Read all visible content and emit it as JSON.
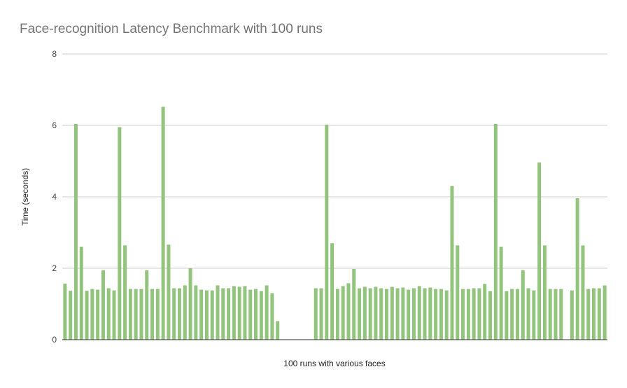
{
  "chart_data": {
    "type": "bar",
    "title": "Face-recognition Latency Benchmark with 100 runs",
    "xlabel": "100 runs with various faces",
    "ylabel": "Time (seconds)",
    "ylim": [
      0,
      8
    ],
    "yticks": [
      "0",
      "2",
      "4",
      "6",
      "8"
    ],
    "grid": true,
    "legend": "none",
    "bar_color": "#93c47d",
    "series": [
      {
        "values": [
          1.57,
          1.37,
          6.04,
          2.6,
          1.37,
          1.42,
          1.4,
          1.94,
          1.44,
          1.38,
          5.95,
          2.64,
          1.42,
          1.42,
          1.42,
          1.94,
          1.42,
          1.42,
          6.52,
          2.66,
          1.44,
          1.44,
          1.52,
          2.0,
          1.52,
          1.4,
          1.38,
          1.38,
          1.52,
          1.44,
          1.44,
          1.5,
          1.48,
          1.5,
          1.4,
          1.42,
          1.36,
          1.52,
          1.3,
          0.52,
          0,
          0,
          0,
          0,
          0,
          0,
          1.44,
          1.44,
          6.02,
          2.7,
          1.42,
          1.5,
          1.58,
          1.98,
          1.44,
          1.48,
          1.44,
          1.48,
          1.44,
          1.42,
          1.48,
          1.44,
          1.46,
          1.4,
          1.44,
          1.5,
          1.44,
          1.46,
          1.42,
          1.42,
          1.38,
          4.3,
          2.64,
          1.42,
          1.42,
          1.44,
          1.44,
          1.56,
          1.36,
          6.04,
          2.6,
          1.36,
          1.42,
          1.42,
          1.94,
          1.44,
          1.38,
          4.96,
          2.64,
          1.42,
          1.42,
          1.42,
          0,
          1.38,
          3.96,
          2.64,
          1.42,
          1.44,
          1.44,
          1.52
        ]
      }
    ]
  }
}
